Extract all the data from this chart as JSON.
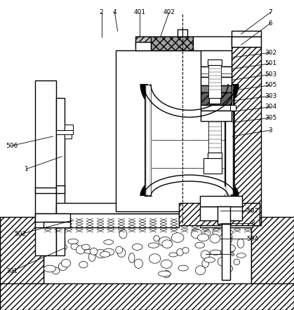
{
  "bg_color": "#ffffff",
  "figsize": [
    4.19,
    4.43
  ],
  "dpi": 100,
  "labels_pos": {
    "301": [
      0.04,
      0.875,
      0.22,
      0.8
    ],
    "502": [
      0.07,
      0.755,
      0.25,
      0.71
    ],
    "1": [
      0.09,
      0.545,
      0.21,
      0.505
    ],
    "506": [
      0.04,
      0.47,
      0.18,
      0.44
    ],
    "2": [
      0.345,
      0.965,
      0.345,
      0.935
    ],
    "4": [
      0.39,
      0.965,
      0.4,
      0.935
    ],
    "401": [
      0.475,
      0.965,
      0.475,
      0.935
    ],
    "402": [
      0.575,
      0.965,
      0.545,
      0.935
    ],
    "7": [
      0.92,
      0.965,
      0.82,
      0.93
    ],
    "6": [
      0.92,
      0.935,
      0.82,
      0.905
    ],
    "302": [
      0.92,
      0.805,
      0.79,
      0.82
    ],
    "501": [
      0.92,
      0.77,
      0.79,
      0.785
    ],
    "503": [
      0.92,
      0.735,
      0.79,
      0.75
    ],
    "505": [
      0.92,
      0.7,
      0.79,
      0.715
    ],
    "303": [
      0.92,
      0.665,
      0.79,
      0.68
    ],
    "304": [
      0.92,
      0.63,
      0.79,
      0.645
    ],
    "305": [
      0.92,
      0.595,
      0.79,
      0.61
    ],
    "3": [
      0.92,
      0.555,
      0.79,
      0.575
    ],
    "507": [
      0.86,
      0.305,
      0.75,
      0.305
    ],
    "8": [
      0.86,
      0.265,
      0.75,
      0.27
    ],
    "504": [
      0.86,
      0.225,
      0.75,
      0.21
    ],
    "5": [
      0.79,
      0.175,
      0.72,
      0.185
    ]
  }
}
